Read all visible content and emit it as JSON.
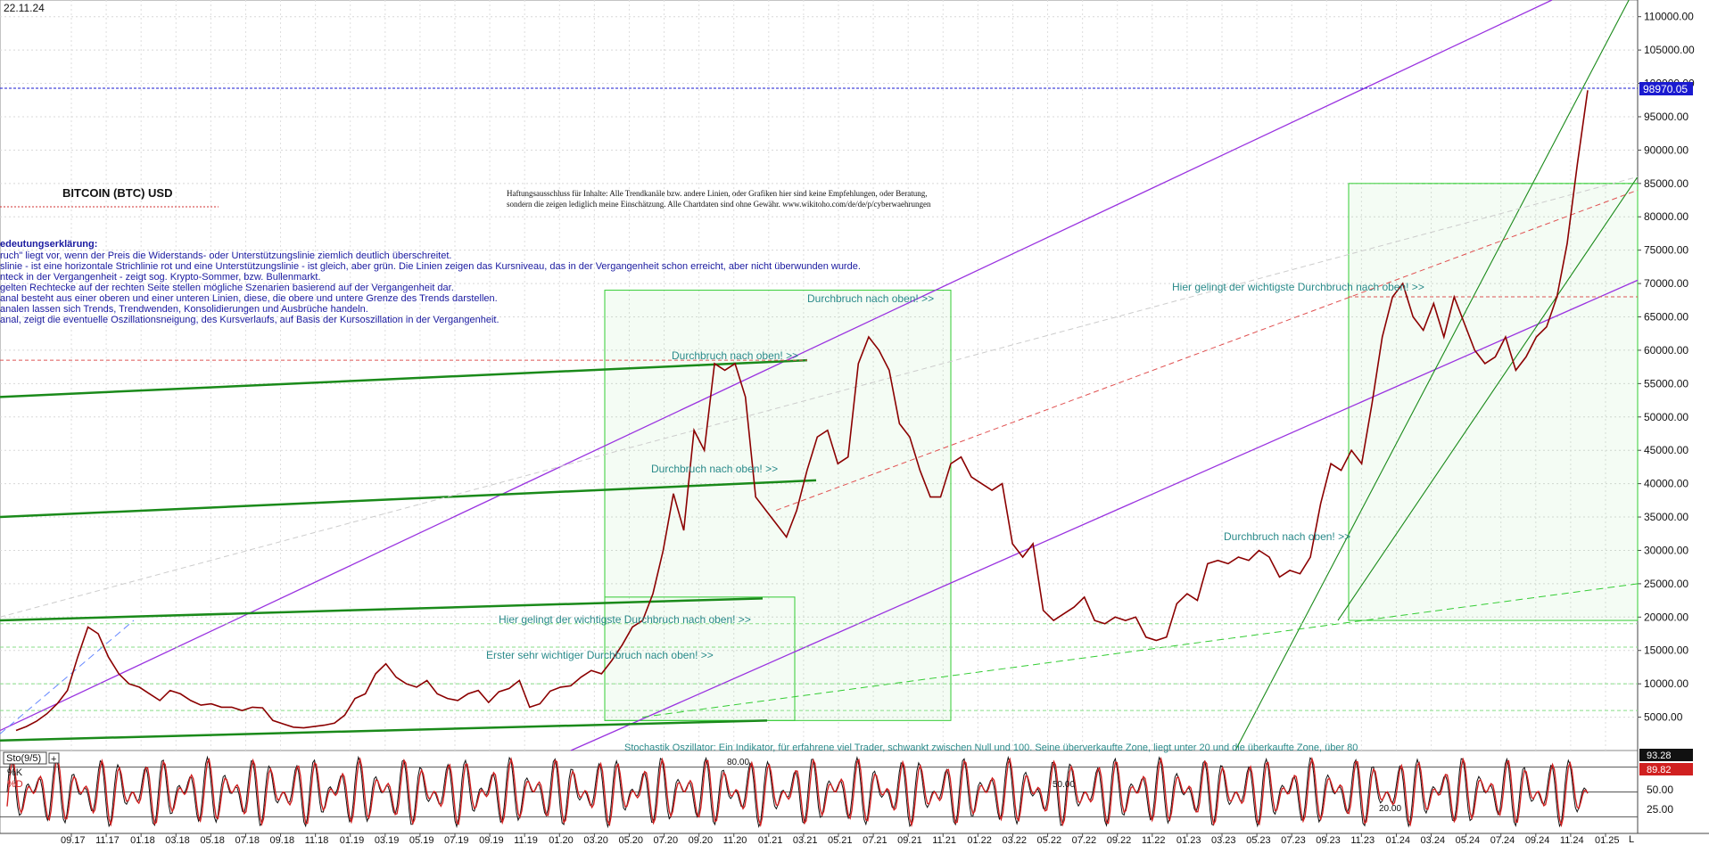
{
  "chart_data": [
    {
      "type": "line",
      "date": "22.11.24",
      "title": "BITCOIN (BTC) USD",
      "disclaimer": [
        "Haftungsausschluss für Inhalte: Alle Trendkanäle bzw. andere Linien, oder Grafiken hier sind keine Empfehlungen, oder Beratung,",
        "sondern die zeigen lediglich meine  Einschätzung. Alle Chartdaten sind ohne Gewähr.  www.wikitoho.com/de/de/p/cyberwaehrungen"
      ],
      "legend_lines": [
        "edeutungserklärung:",
        "ruch\" liegt vor, wenn der Preis die Widerstands- oder Unterstützungslinie ziemlich deutlich überschreitet.",
        "slinie - ist eine horizontale Strichlinie rot und eine Unterstützungslinie - ist gleich, aber grün. Die Linien zeigen das Kursniveau, das in der Vergangenheit schon erreicht, aber nicht überwunden wurde.",
        "nteck in der Vergangenheit - zeigt sog. Krypto-Sommer, bzw. Bullenmarkt.",
        "gelten Rechtecke auf der rechten Seite stellen mögliche Szenarien basierend auf der Vergangenheit dar.",
        "anal besteht aus einer oberen und einer unteren Linien, diese, die obere und untere Grenze des Trends darstellen.",
        "analen lassen sich Trends, Trendwenden, Konsolidierungen und Ausbrüche handeln.",
        "anal, zeigt die eventuelle Oszillationsneigung, des Kursverlaufs, auf Basis der Kursoszillation in der Vergangenheit."
      ],
      "annotations": [
        "Durchbruch nach oben! >>",
        "Durchbruch nach oben! >>",
        "Durchbruch nach oben! >>",
        "Hier gelingt der wichtigste Durchbruch nach oben! >>",
        "Erster sehr wichtiger Durchbruch nach oben! >>",
        "Hier gelingt der wichtigste Durchbruch nach oben! >>",
        "Durchbruch nach oben! >>"
      ],
      "y_ticks": [
        "5000.00",
        "10000.00",
        "15000.00",
        "20000.00",
        "25000.00",
        "30000.00",
        "35000.00",
        "40000.00",
        "45000.00",
        "50000.00",
        "55000.00",
        "60000.00",
        "65000.00",
        "70000.00",
        "75000.00",
        "80000.00",
        "85000.00",
        "90000.00",
        "95000.00",
        "100000.00",
        "105000.00",
        "110000.00"
      ],
      "ylim": [
        0,
        112500
      ],
      "x_ticks": [
        "09.17",
        "11.17",
        "01.18",
        "03.18",
        "05.18",
        "07.18",
        "09.18",
        "11.18",
        "01.19",
        "03.19",
        "05.19",
        "07.19",
        "09.19",
        "11.19",
        "01.20",
        "03.20",
        "05.20",
        "07.20",
        "09.20",
        "11.20",
        "01.21",
        "03.21",
        "05.21",
        "07.21",
        "09.21",
        "11.21",
        "01.22",
        "03.22",
        "05.22",
        "07.22",
        "09.22",
        "11.22",
        "01.23",
        "03.23",
        "05.23",
        "07.23",
        "09.23",
        "11.23",
        "01.24",
        "03.24",
        "05.24",
        "07.24",
        "09.24",
        "11.24",
        "01.25"
      ],
      "x_end_label": "L",
      "last_price": "98970.05",
      "series": [
        {
          "values": [
            3000,
            3600,
            4400,
            5500,
            7000,
            9000,
            14000,
            18500,
            17500,
            14000,
            11500,
            10000,
            9500,
            8500,
            7500,
            9000,
            8500,
            7500,
            6800,
            7000,
            6500,
            6500,
            6000,
            6500,
            6400,
            4500,
            4000,
            3500,
            3400,
            3600,
            3800,
            4100,
            5300,
            7800,
            8500,
            11500,
            13000,
            11000,
            10000,
            9500,
            10500,
            8500,
            7800,
            7500,
            8500,
            9000,
            7200,
            8800,
            9300,
            10500,
            6500,
            7000,
            8900,
            9500,
            9700,
            11000,
            12000,
            11500,
            13500,
            15800,
            18500,
            19500,
            23500,
            30000,
            38500,
            33000,
            48000,
            45000,
            58000,
            57000,
            58000,
            53000,
            38000,
            36000,
            34000,
            32000,
            36000,
            42000,
            47000,
            48000,
            43000,
            44000,
            58000,
            62000,
            60000,
            57000,
            49000,
            47000,
            42000,
            38000,
            38000,
            43000,
            44000,
            41000,
            40000,
            39000,
            40000,
            31000,
            29000,
            31000,
            21000,
            19500,
            20500,
            21500,
            23000,
            19500,
            19000,
            20000,
            19500,
            20000,
            17000,
            16500,
            17000,
            22000,
            23500,
            22500,
            28000,
            28500,
            28000,
            29000,
            28500,
            30000,
            29000,
            26000,
            27000,
            26500,
            29000,
            37000,
            43000,
            42000,
            45000,
            43000,
            52000,
            62000,
            68000,
            70000,
            65000,
            63000,
            67000,
            62000,
            68000,
            64000,
            60000,
            58000,
            59000,
            62000,
            57000,
            59000,
            62000,
            63500,
            68000,
            76000,
            88000,
            98970
          ]
        }
      ]
    },
    {
      "type": "line",
      "title": "Sto(9/5)",
      "legend": [
        "%K",
        "%D"
      ],
      "annotation": "Stochastik Oszillator: Ein Indikator, für erfahrene viel Trader, schwankt zwischen Null und 100. Seine überverkaufte Zone, liegt unter 20 und die überkaufte Zone, über 80",
      "levels": [
        "80.00",
        "50.00",
        "20.00"
      ],
      "y_ticks": [
        "50.00",
        "25.00"
      ],
      "current_k": "93.28",
      "current_d": "89.82",
      "ylim": [
        0,
        100
      ]
    }
  ]
}
